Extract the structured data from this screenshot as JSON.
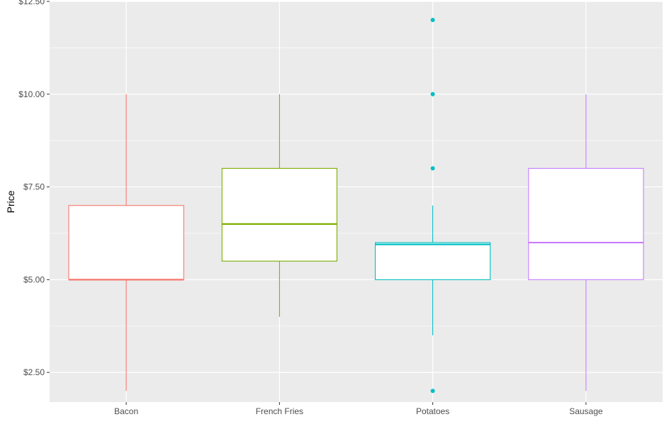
{
  "chart_data": {
    "type": "box",
    "title": "",
    "xlabel": "",
    "ylabel": "Price",
    "ylim": [
      1.7,
      12.5
    ],
    "y_ticks": [
      2.5,
      5.0,
      7.5,
      10.0,
      12.5
    ],
    "y_tick_labels": [
      "$2.50",
      "$5.00",
      "$7.50",
      "$10.00",
      "$12.50"
    ],
    "categories": [
      "Bacon",
      "French Fries",
      "Potatoes",
      "Sausage"
    ],
    "grid": true,
    "legend": "none",
    "boxes": [
      {
        "category": "Bacon",
        "color": "#F8766D",
        "whisker_low": 2.0,
        "q1": 5.0,
        "median": 5.0,
        "q3": 7.0,
        "whisker_high": 10.0,
        "outliers": []
      },
      {
        "category": "French Fries",
        "color": "#7CAE00",
        "whisker_low": 4.0,
        "q1": 5.5,
        "median": 6.5,
        "q3": 8.0,
        "whisker_high": 10.0,
        "outliers": []
      },
      {
        "category": "Potatoes",
        "color": "#00BFC4",
        "whisker_low": 3.5,
        "q1": 5.0,
        "median": 5.95,
        "q3": 6.0,
        "whisker_high": 7.0,
        "outliers": [
          2.0,
          8.0,
          10.0,
          12.0
        ]
      },
      {
        "category": "Sausage",
        "color": "#C77CFF",
        "whisker_low": 2.0,
        "q1": 5.0,
        "median": 6.0,
        "q3": 8.0,
        "whisker_high": 10.0,
        "outliers": []
      }
    ],
    "colors": {
      "panel_bg": "#EBEBEB",
      "grid_major": "#FFFFFF",
      "tick_text": "#4D4D4D"
    }
  }
}
